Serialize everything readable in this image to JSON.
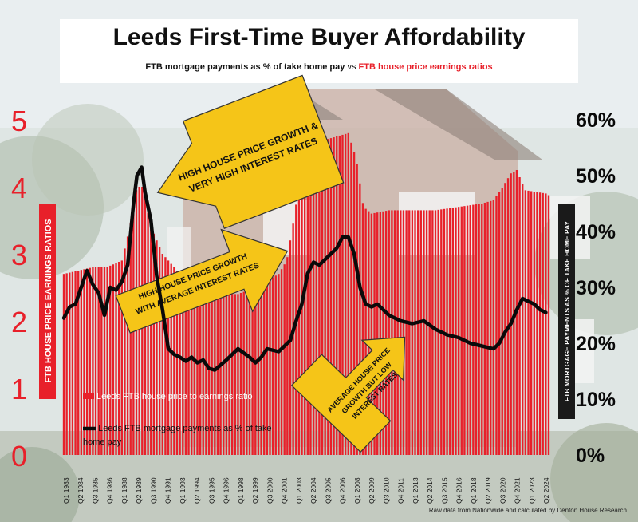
{
  "title": "Leeds First-Time Buyer Affordability",
  "subtitle": {
    "part1": "FTB mortgage payments as % of take home pay",
    "vs": "vs",
    "part2": "FTB house price earnings ratios"
  },
  "footer": "Raw data from Nationwide and calculated by Denton House Research",
  "colors": {
    "bar": "#e8202a",
    "line": "#0a0a0a",
    "left_axis": "#e8202a",
    "arrow_fill": "#f5c518",
    "arrow_stroke": "#333333",
    "axis_label_box": "#1a1a1a"
  },
  "chart_data": {
    "type": "bar",
    "title": "Leeds First-Time Buyer Affordability",
    "left_axis": {
      "label": "FTB HOUSE PRICE EARNINGS RATIOS",
      "ylim": [
        0,
        5
      ],
      "ticks": [
        "0",
        "1",
        "2",
        "3",
        "4",
        "5"
      ]
    },
    "right_axis": {
      "label": "FTB MORTGAGE PAYMENTS AS % OF TAKE HOME PAY",
      "ylim": [
        0,
        60
      ],
      "ticks": [
        "0%",
        "10%",
        "20%",
        "30%",
        "40%",
        "50%",
        "60%"
      ]
    },
    "x_tick_labels": [
      "Q1 1983",
      "Q2 1984",
      "Q3 1985",
      "Q4 1986",
      "Q1 1988",
      "Q2 1989",
      "Q3 1990",
      "Q4 1991",
      "Q1 1993",
      "Q2 1994",
      "Q3 1995",
      "Q4 1996",
      "Q1 1998",
      "Q2 1999",
      "Q3 2000",
      "Q4 2001",
      "Q1 2003",
      "Q2 2004",
      "Q3 2005",
      "Q4 2006",
      "Q1 2008",
      "Q2 2009",
      "Q3 2010",
      "Q4 2011",
      "Q1 2013",
      "Q2 2014",
      "Q3 2015",
      "Q4 2016",
      "Q1 2018",
      "Q2 2019",
      "Q3 2020",
      "Q4 2021",
      "Q1 2023",
      "Q2 2024"
    ],
    "legend": {
      "bar_label": "Leeds FTB house price to earnings ratio",
      "line_label": "Leeds FTB mortgage payments as % of take home pay"
    },
    "series": [
      {
        "name": "Leeds FTB house price to earnings ratio",
        "kind": "bar",
        "axis": "left",
        "anchors": [
          [
            1983.0,
            2.7
          ],
          [
            1985.5,
            2.8
          ],
          [
            1986.7,
            2.8
          ],
          [
            1988.0,
            2.9
          ],
          [
            1988.7,
            3.4
          ],
          [
            1989.3,
            4.0
          ],
          [
            1989.8,
            4.0
          ],
          [
            1990.5,
            3.4
          ],
          [
            1991.5,
            3.0
          ],
          [
            1993.0,
            2.7
          ],
          [
            1995.0,
            2.45
          ],
          [
            1996.5,
            2.4
          ],
          [
            1998.0,
            2.4
          ],
          [
            1999.5,
            2.5
          ],
          [
            2000.5,
            2.6
          ],
          [
            2001.5,
            2.7
          ],
          [
            2002.2,
            2.9
          ],
          [
            2002.8,
            3.5
          ],
          [
            2003.4,
            4.2
          ],
          [
            2004.2,
            4.6
          ],
          [
            2005.5,
            4.7
          ],
          [
            2006.5,
            4.75
          ],
          [
            2007.5,
            4.8
          ],
          [
            2008.2,
            4.4
          ],
          [
            2008.8,
            3.7
          ],
          [
            2009.5,
            3.6
          ],
          [
            2011.0,
            3.65
          ],
          [
            2013.0,
            3.65
          ],
          [
            2015.0,
            3.65
          ],
          [
            2017.0,
            3.7
          ],
          [
            2019.0,
            3.75
          ],
          [
            2020.0,
            3.8
          ],
          [
            2020.8,
            4.0
          ],
          [
            2021.5,
            4.2
          ],
          [
            2022.0,
            4.25
          ],
          [
            2022.7,
            3.95
          ],
          [
            2024.5,
            3.9
          ],
          [
            2025.0,
            3.85
          ]
        ]
      },
      {
        "name": "Leeds FTB mortgage payments as % of take home pay",
        "kind": "line",
        "axis": "right",
        "anchors": [
          [
            1983.0,
            24.5
          ],
          [
            1983.5,
            26.5
          ],
          [
            1984.0,
            27.0
          ],
          [
            1984.5,
            30.0
          ],
          [
            1985.0,
            33.0
          ],
          [
            1985.5,
            30.5
          ],
          [
            1986.0,
            29.0
          ],
          [
            1986.5,
            25.0
          ],
          [
            1987.0,
            30.0
          ],
          [
            1987.5,
            29.5
          ],
          [
            1988.0,
            31.0
          ],
          [
            1988.5,
            34.0
          ],
          [
            1989.0,
            45.0
          ],
          [
            1989.3,
            50.0
          ],
          [
            1989.7,
            51.5
          ],
          [
            1990.0,
            47.0
          ],
          [
            1990.5,
            42.0
          ],
          [
            1991.0,
            32.0
          ],
          [
            1991.5,
            26.0
          ],
          [
            1992.0,
            19.0
          ],
          [
            1992.5,
            18.0
          ],
          [
            1993.0,
            17.5
          ],
          [
            1993.5,
            16.8
          ],
          [
            1994.0,
            17.5
          ],
          [
            1994.5,
            16.5
          ],
          [
            1995.0,
            17.0
          ],
          [
            1995.5,
            15.5
          ],
          [
            1996.0,
            15.2
          ],
          [
            1997.0,
            17.0
          ],
          [
            1998.0,
            19.0
          ],
          [
            1999.0,
            17.5
          ],
          [
            1999.5,
            16.5
          ],
          [
            2000.0,
            17.5
          ],
          [
            2000.5,
            19.0
          ],
          [
            2001.5,
            18.5
          ],
          [
            2002.5,
            20.5
          ],
          [
            2003.0,
            24.0
          ],
          [
            2003.5,
            27.0
          ],
          [
            2004.0,
            32.5
          ],
          [
            2004.5,
            34.5
          ],
          [
            2005.0,
            34.0
          ],
          [
            2005.5,
            35.0
          ],
          [
            2006.0,
            36.0
          ],
          [
            2006.5,
            37.0
          ],
          [
            2007.0,
            39.0
          ],
          [
            2007.5,
            39.0
          ],
          [
            2008.0,
            36.0
          ],
          [
            2008.5,
            30.0
          ],
          [
            2009.0,
            27.0
          ],
          [
            2009.5,
            26.5
          ],
          [
            2010.0,
            27.0
          ],
          [
            2010.5,
            26.0
          ],
          [
            2011.0,
            25.0
          ],
          [
            2011.5,
            24.5
          ],
          [
            2012.0,
            24.0
          ],
          [
            2013.0,
            23.5
          ],
          [
            2014.0,
            24.0
          ],
          [
            2015.0,
            22.5
          ],
          [
            2016.0,
            21.5
          ],
          [
            2017.0,
            21.0
          ],
          [
            2018.0,
            20.0
          ],
          [
            2019.0,
            19.5
          ],
          [
            2020.0,
            19.0
          ],
          [
            2020.5,
            20.0
          ],
          [
            2021.0,
            22.0
          ],
          [
            2021.5,
            23.5
          ],
          [
            2022.0,
            26.0
          ],
          [
            2022.5,
            28.0
          ],
          [
            2023.0,
            27.5
          ],
          [
            2023.5,
            27.0
          ],
          [
            2024.0,
            26.0
          ],
          [
            2024.5,
            25.5
          ]
        ]
      }
    ],
    "annotations": [
      "HIGH HOUSE PRICE GROWTH & VERY HIGH INTEREST RATES",
      "HIGH HOUSE PRICE GROWTH WITH AVERAGE INTEREST RATES",
      "AVERAGE HOUSE PRICE GROWTH BUT LOW INTEREST RATES"
    ]
  }
}
